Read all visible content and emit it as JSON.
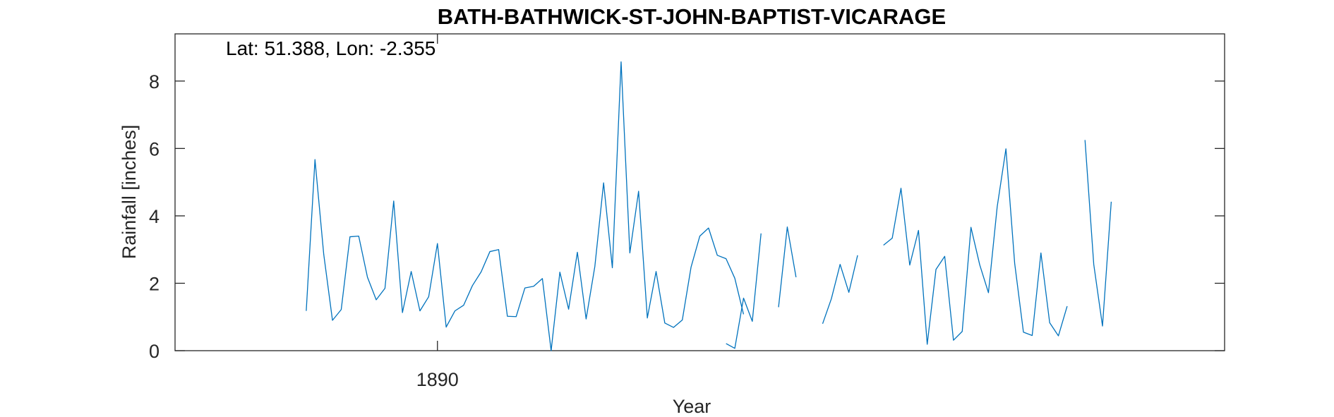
{
  "chart_data": {
    "type": "line",
    "title": "BATH-BATHWICK-ST-JOHN-BAPTIST-VICARAGE",
    "xlabel": "Year",
    "ylabel": "Rainfall [inches]",
    "annotation": "Lat: 51.388, Lon: -2.355",
    "xlim": [
      1887.5,
      1897.5
    ],
    "ylim": [
      0,
      9.4
    ],
    "yticks": [
      0,
      2,
      4,
      6,
      8
    ],
    "xticks": [
      1890
    ],
    "xtick_labels": [
      "1890"
    ],
    "grid": false,
    "series": [
      {
        "color": "#0072BD",
        "segments": [
          {
            "start": 1888.75,
            "step": 0.08333,
            "values": [
              1.18,
              5.67,
              2.86,
              0.9,
              1.22,
              3.38,
              3.4,
              2.18,
              1.51,
              1.85,
              4.44,
              1.13,
              2.35,
              1.18,
              1.6,
              3.18,
              0.7,
              1.18,
              1.35,
              1.93,
              2.34,
              2.94,
              3.0,
              1.02,
              1.01,
              1.86,
              1.91,
              2.14,
              0.0,
              2.33,
              1.23,
              2.92,
              0.94,
              2.5,
              4.98,
              2.46,
              8.57,
              2.9,
              4.73,
              0.97,
              2.35,
              0.82,
              0.69,
              0.91,
              2.48,
              3.4,
              3.64,
              2.83,
              2.73,
              2.15,
              1.08
            ]
          },
          {
            "start": 1892.75,
            "step": 0.08333,
            "values": [
              0.21,
              0.07,
              1.56,
              0.87,
              3.48
            ]
          },
          {
            "start": 1893.25,
            "step": 0.08333,
            "values": [
              1.29,
              3.67,
              2.18
            ]
          },
          {
            "start": 1893.67,
            "step": 0.08333,
            "values": [
              0.8,
              1.54,
              2.56,
              1.73,
              2.83
            ]
          },
          {
            "start": 1894.25,
            "step": 0.08333,
            "values": [
              3.13,
              3.34,
              4.82,
              2.54,
              3.57,
              0.19,
              2.41,
              2.8,
              0.31,
              0.57,
              3.66,
              2.55,
              1.72,
              4.27,
              5.99,
              2.59,
              0.55,
              0.45,
              2.9,
              0.83,
              0.44,
              1.32
            ]
          },
          {
            "start": 1896.17,
            "step": 0.08333,
            "values": [
              6.25,
              2.56,
              0.73,
              4.42
            ]
          }
        ]
      }
    ]
  }
}
